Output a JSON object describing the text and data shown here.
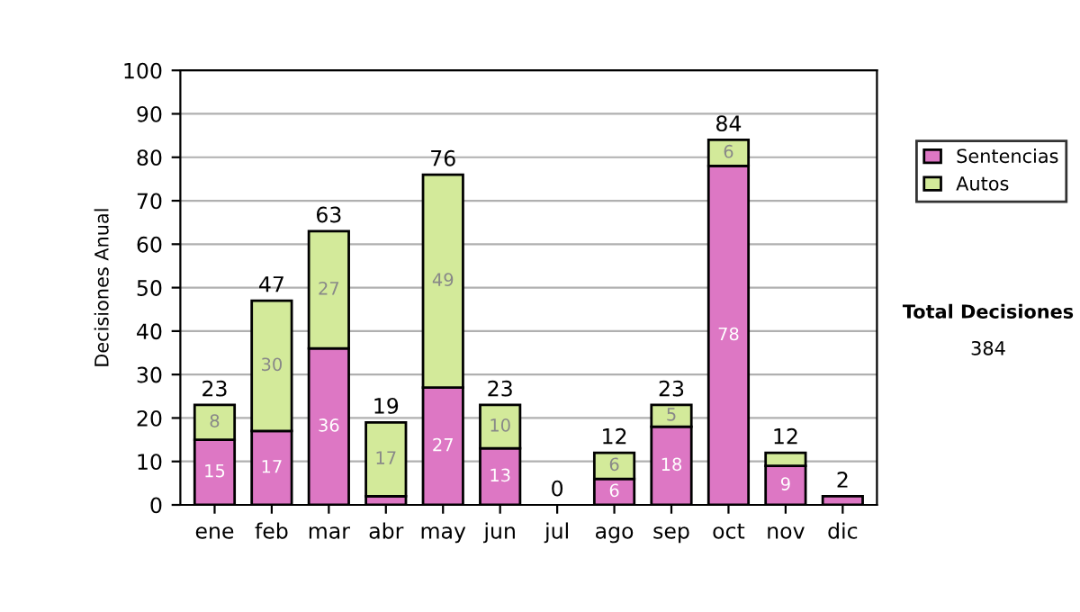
{
  "chart_data": {
    "type": "bar",
    "stacked": true,
    "ylabel": "Decisiones Anual",
    "categories": [
      "ene",
      "feb",
      "mar",
      "abr",
      "may",
      "jun",
      "jul",
      "ago",
      "sep",
      "oct",
      "nov",
      "dic"
    ],
    "series": [
      {
        "name": "Sentencias",
        "color": "#dd77c4",
        "values": [
          15,
          17,
          36,
          2,
          27,
          13,
          null,
          6,
          18,
          78,
          9,
          2
        ],
        "value_labels": [
          "15",
          "17",
          "36",
          null,
          "27",
          "13",
          null,
          "6",
          "18",
          "78",
          "9",
          null
        ]
      },
      {
        "name": "Autos",
        "color": "#d3ea9a",
        "values": [
          8,
          30,
          27,
          17,
          49,
          10,
          null,
          6,
          5,
          6,
          3,
          null
        ],
        "value_labels": [
          "8",
          "30",
          "27",
          "17",
          "49",
          "10",
          null,
          "6",
          "5",
          "6",
          null,
          null
        ]
      }
    ],
    "totals": [
      "23",
      "47",
      "63",
      "19",
      "76",
      "23",
      "0",
      "12",
      "23",
      "84",
      "12",
      "2"
    ],
    "ylim": [
      0,
      100
    ],
    "yticks": [
      0,
      10,
      20,
      30,
      40,
      50,
      60,
      70,
      80,
      90,
      100
    ],
    "grid": "y",
    "legend": "right",
    "annotations": [
      "Total Decisiones",
      "384"
    ]
  }
}
